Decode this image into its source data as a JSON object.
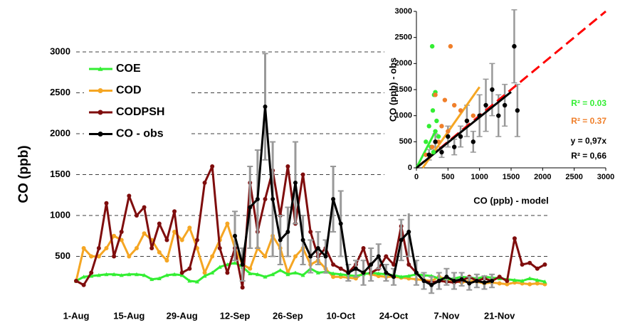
{
  "chart_data": [
    {
      "type": "line",
      "y_label": "CO (ppb)",
      "categories": [
        "1-Aug",
        null,
        null,
        null,
        null,
        null,
        null,
        "15-Aug",
        null,
        null,
        null,
        null,
        null,
        null,
        "29-Aug",
        null,
        null,
        null,
        null,
        null,
        null,
        "12-Sep",
        null,
        null,
        null,
        null,
        null,
        null,
        "26-Sep",
        null,
        null,
        null,
        null,
        null,
        null,
        "10-Oct",
        null,
        null,
        null,
        null,
        null,
        null,
        "24-Oct",
        null,
        null,
        null,
        null,
        null,
        null,
        "7-Nov",
        null,
        null,
        null,
        null,
        null,
        null,
        "21-Nov",
        null,
        null,
        null,
        null,
        null,
        null
      ],
      "series": [
        {
          "name": "COE",
          "color": "#33ee33",
          "marker": "triangle",
          "values": [
            200,
            250,
            260,
            270,
            280,
            280,
            270,
            280,
            280,
            270,
            220,
            230,
            270,
            280,
            270,
            200,
            190,
            260,
            300,
            370,
            400,
            420,
            370,
            290,
            280,
            250,
            280,
            330,
            280,
            300,
            270,
            350,
            300,
            310,
            290,
            280,
            270,
            260,
            280,
            300,
            290,
            280,
            270,
            250,
            260,
            280,
            270,
            260,
            230,
            220,
            230,
            250,
            240,
            230,
            250,
            240,
            230,
            220,
            210,
            200,
            230,
            210,
            190
          ]
        },
        {
          "name": "COD",
          "color": "#f5a623",
          "marker": "circle",
          "values": [
            200,
            600,
            500,
            500,
            600,
            750,
            700,
            500,
            600,
            780,
            700,
            550,
            450,
            800,
            700,
            850,
            600,
            300,
            500,
            700,
            900,
            600,
            400,
            350,
            600,
            500,
            750,
            600,
            300,
            500,
            600,
            400,
            450,
            350,
            250,
            250,
            240,
            230,
            300,
            280,
            260,
            250,
            250,
            240,
            230,
            220,
            210,
            200,
            250,
            220,
            200,
            180,
            200,
            190,
            170,
            180,
            170,
            160,
            180,
            170,
            160,
            170,
            160
          ]
        },
        {
          "name": "CODPSH",
          "color": "#7f0d0d",
          "marker": "circle",
          "values": [
            200,
            150,
            300,
            600,
            1150,
            500,
            800,
            1240,
            1000,
            1100,
            600,
            900,
            700,
            1050,
            300,
            350,
            700,
            1400,
            1600,
            600,
            300,
            600,
            120,
            1400,
            800,
            1200,
            1550,
            1000,
            1600,
            900,
            1500,
            800,
            500,
            600,
            400,
            350,
            300,
            400,
            600,
            300,
            350,
            500,
            400,
            870,
            400,
            300,
            200,
            180,
            200,
            190,
            180,
            200,
            250,
            200,
            230,
            200,
            250,
            200,
            720,
            400,
            420,
            350,
            400
          ]
        },
        {
          "name": "CO - obs",
          "color": "#000000",
          "marker": "circle",
          "error_color": "#999999",
          "values": [
            null,
            null,
            null,
            null,
            null,
            null,
            null,
            null,
            null,
            null,
            null,
            null,
            null,
            null,
            null,
            null,
            null,
            null,
            null,
            null,
            null,
            750,
            400,
            1100,
            1200,
            2330,
            1200,
            700,
            800,
            1400,
            700,
            500,
            600,
            500,
            1200,
            900,
            300,
            350,
            300,
            400,
            500,
            300,
            250,
            700,
            800,
            300,
            200,
            150,
            200,
            250,
            200,
            220,
            170,
            200,
            180,
            200,
            null,
            null,
            null,
            null,
            null,
            null,
            null
          ],
          "errors": [
            null,
            null,
            null,
            null,
            null,
            null,
            null,
            null,
            null,
            null,
            null,
            null,
            null,
            null,
            null,
            null,
            null,
            null,
            null,
            null,
            null,
            300,
            200,
            500,
            600,
            650,
            700,
            300,
            300,
            500,
            300,
            200,
            200,
            200,
            400,
            400,
            100,
            100,
            150,
            200,
            150,
            100,
            100,
            250,
            300,
            150,
            100,
            100,
            100,
            100,
            100,
            80,
            80,
            80,
            80,
            80,
            null,
            null,
            null,
            null,
            null,
            null,
            null
          ]
        }
      ],
      "ylim": [
        0,
        3000
      ],
      "yticks": [
        500,
        1000,
        1500,
        2000,
        2500,
        3000
      ],
      "grid": true,
      "legend": "upper left"
    },
    {
      "type": "scatter",
      "x_label": "CO (ppb) - model",
      "y_label": "CO (ppb) - obs",
      "xlim": [
        0,
        3000
      ],
      "ylim": [
        0,
        3000
      ],
      "xticks": [
        0,
        500,
        1000,
        1500,
        2000,
        2500,
        3000
      ],
      "yticks": [
        0,
        500,
        1000,
        1500,
        2000,
        2500,
        3000
      ],
      "series": [
        {
          "color": "#33ee33",
          "x": [
            250,
            280,
            300,
            260,
            320,
            200,
            150,
            350,
            270,
            230,
            300
          ],
          "y": [
            2330,
            1400,
            1450,
            1100,
            900,
            800,
            500,
            600,
            300,
            400,
            700
          ]
        },
        {
          "color": "#f07f2a",
          "x": [
            540,
            300,
            450,
            600,
            700,
            800,
            500,
            350,
            250,
            150,
            900,
            400
          ],
          "y": [
            2330,
            1400,
            1300,
            1200,
            1100,
            900,
            700,
            500,
            400,
            250,
            1000,
            800
          ]
        },
        {
          "color": "#000000",
          "error_color": "#999999",
          "x": [
            1550,
            1200,
            1400,
            1600,
            1000,
            800,
            900,
            600,
            500,
            400,
            300,
            200,
            700,
            1100,
            1300
          ],
          "y": [
            2330,
            1500,
            1200,
            1100,
            1000,
            900,
            500,
            400,
            600,
            300,
            500,
            250,
            600,
            1200,
            1000
          ],
          "errors": [
            700,
            500,
            400,
            500,
            400,
            300,
            200,
            150,
            200,
            100,
            150,
            100,
            200,
            500,
            400
          ]
        }
      ],
      "fits": [
        {
          "color": "#ff0000",
          "dashed": true,
          "x": [
            0,
            3000
          ],
          "y": [
            0,
            3000
          ]
        },
        {
          "color": "#f5a623",
          "dashed": false,
          "x": [
            100,
            1000
          ],
          "y": [
            0,
            1550
          ]
        },
        {
          "color": "#33ee33",
          "dashed": false,
          "x": [
            0,
            300
          ],
          "y": [
            0,
            700
          ]
        },
        {
          "color": "#000000",
          "dashed": false,
          "x": [
            0,
            1500
          ],
          "y": [
            0,
            1455
          ]
        }
      ],
      "annotations": [
        {
          "text": "R² = 0.03",
          "color": "#33ee33"
        },
        {
          "text": "R² = 0.37",
          "color": "#f07f2a"
        },
        {
          "text": "y = 0,97x",
          "color": "#000000"
        },
        {
          "text": "R² = 0,66",
          "color": "#000000"
        }
      ]
    }
  ]
}
